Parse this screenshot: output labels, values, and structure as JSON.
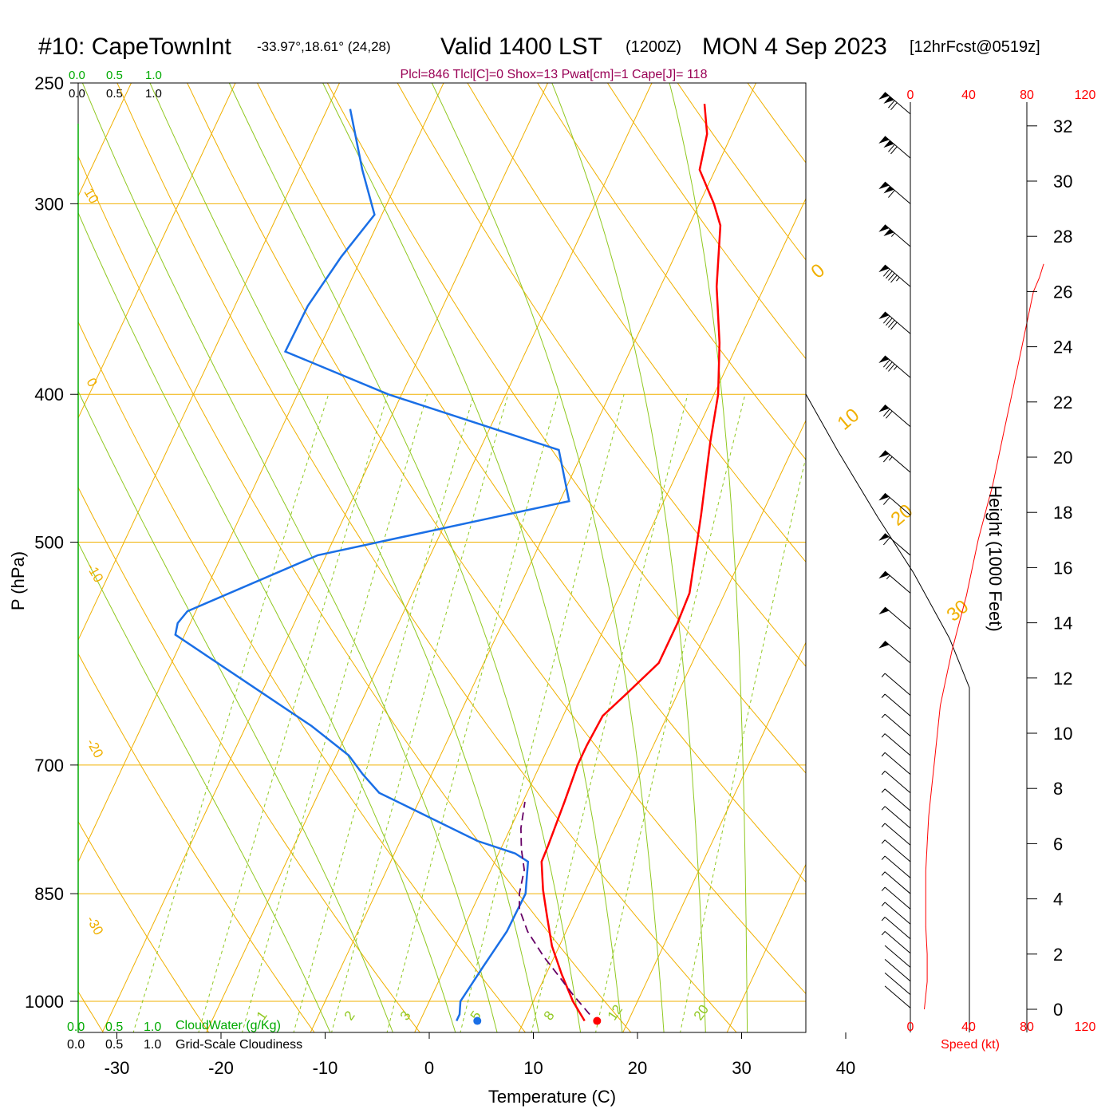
{
  "header": {
    "station": "#10: CapeTownInt",
    "coords": "-33.97°,18.61° (24,28)",
    "valid": "Valid 1400 LST",
    "zulu": "(1200Z)",
    "date": "MON 4 Sep 2023",
    "forecast": "[12hrFcst@0519z]"
  },
  "params_line": "Plcl=846 Tlcl[C]=0 Shox=13 Pwat[cm]=1 Cape[J]= 118",
  "colors": {
    "isotherm": "#f0b000",
    "dry_adiabat": "#f0b000",
    "moist_adiabat": "#90c820",
    "mixing_ratio": "#90c820",
    "temperature": "#ff0000",
    "dewpoint": "#1a6fe6",
    "parcel": "#660066",
    "cloud": "#00aa00",
    "speed": "#ff0000",
    "params": "#990055"
  },
  "cloud_scale_top": {
    "green": [
      "0.0",
      "0.5",
      "1.0"
    ],
    "black": [
      "0.0",
      "0.5",
      "1.0"
    ]
  },
  "cloud_scale_bottom": {
    "green": [
      "0.0",
      "0.5",
      "1.0"
    ],
    "green_label": "CloudWater (g/Kg)",
    "black": [
      "0.0",
      "0.5",
      "1.0"
    ],
    "black_label": "Grid-Scale Cloudiness"
  },
  "speed_scale": {
    "ticks": [
      "0",
      "40",
      "80",
      "120"
    ],
    "label": "Speed (kt)"
  },
  "chart_data": {
    "type": "line",
    "title": "#10: CapeTownInt Valid 1400 LST (1200Z) MON 4 Sep 2023",
    "xlabel": "Temperature (C)",
    "ylabel": "P (hPa)",
    "y2label": "Height (1000 Feet)",
    "x_ticks": [
      "-30",
      "-20",
      "-10",
      "0",
      "10",
      "20",
      "30",
      "40"
    ],
    "y_ticks": [
      "250",
      "300",
      "400",
      "500",
      "700",
      "850",
      "1000"
    ],
    "height_ticks": [
      "0",
      "2",
      "4",
      "6",
      "8",
      "10",
      "12",
      "14",
      "16",
      "18",
      "20",
      "22",
      "24",
      "26",
      "28",
      "30",
      "32"
    ],
    "xlim": [
      -33,
      47
    ],
    "ylim": [
      1050,
      250
    ],
    "log_scale_y": true,
    "skew": true,
    "mixing_ratio_labels": [
      "1",
      "2",
      "3",
      "5",
      "8",
      "12",
      "20"
    ],
    "isotherm_labels": [
      "10",
      "0",
      "-10",
      "-20",
      "-30",
      "0",
      "10",
      "20",
      "30"
    ],
    "series": [
      {
        "role": "temperature",
        "values": [
          [
            15.8,
            1030
          ],
          [
            13.8,
            1000
          ],
          [
            11.5,
            960
          ],
          [
            9.3,
            920
          ],
          [
            7.5,
            880
          ],
          [
            5.9,
            845
          ],
          [
            4.5,
            810
          ],
          [
            4.4,
            790
          ],
          [
            4.0,
            740
          ],
          [
            3.6,
            700
          ],
          [
            3.6,
            680
          ],
          [
            3.8,
            650
          ],
          [
            5.0,
            630
          ],
          [
            6.8,
            600
          ],
          [
            6.8,
            565
          ],
          [
            6.6,
            540
          ],
          [
            4.2,
            480
          ],
          [
            1.8,
            430
          ],
          [
            0.4,
            400
          ],
          [
            -1.8,
            370
          ],
          [
            -4.6,
            340
          ],
          [
            -7.0,
            310
          ],
          [
            -8.6,
            300
          ],
          [
            -11.5,
            285
          ],
          [
            -12.4,
            270
          ],
          [
            -14.0,
            258
          ]
        ]
      },
      {
        "role": "dewpoint",
        "values": [
          [
            3.5,
            1030
          ],
          [
            3.5,
            1020
          ],
          [
            3.0,
            1000
          ],
          [
            3.6,
            950
          ],
          [
            4.3,
            900
          ],
          [
            4.4,
            850
          ],
          [
            3.2,
            810
          ],
          [
            1.6,
            800
          ],
          [
            -2.6,
            785
          ],
          [
            -8.8,
            755
          ],
          [
            -14.2,
            730
          ],
          [
            -16.6,
            710
          ],
          [
            -18.8,
            690
          ],
          [
            -23.7,
            660
          ],
          [
            -31.5,
            620
          ],
          [
            -40.9,
            575
          ],
          [
            -41.2,
            565
          ],
          [
            -40.8,
            555
          ],
          [
            -30.8,
            510
          ],
          [
            -9.1,
            470
          ],
          [
            -12.4,
            435
          ],
          [
            -31.3,
            400
          ],
          [
            -43.1,
            375
          ],
          [
            -43.0,
            350
          ],
          [
            -42.0,
            325
          ],
          [
            -40.7,
            305
          ],
          [
            -43.9,
            285
          ],
          [
            -47.8,
            260
          ]
        ]
      },
      {
        "role": "parcel",
        "values": [
          [
            16.0,
            1020
          ],
          [
            13.5,
            990
          ],
          [
            11.5,
            965
          ],
          [
            9.0,
            935
          ],
          [
            6.3,
            900
          ],
          [
            4.5,
            870
          ],
          [
            3.8,
            850
          ],
          [
            3.2,
            820
          ],
          [
            2.0,
            795
          ],
          [
            1.0,
            770
          ],
          [
            0.2,
            740
          ]
        ]
      }
    ],
    "surface_temperature": 17,
    "surface_dewpoint": 5.5
  },
  "winds": [
    {
      "p": 1010,
      "kt": 4
    },
    {
      "p": 990,
      "kt": 4
    },
    {
      "p": 970,
      "kt": 4
    },
    {
      "p": 950,
      "kt": 4
    },
    {
      "p": 930,
      "kt": 5
    },
    {
      "p": 910,
      "kt": 5
    },
    {
      "p": 890,
      "kt": 5
    },
    {
      "p": 870,
      "kt": 5
    },
    {
      "p": 850,
      "kt": 5
    },
    {
      "p": 830,
      "kt": 5
    },
    {
      "p": 810,
      "kt": 5
    },
    {
      "p": 790,
      "kt": 5
    },
    {
      "p": 770,
      "kt": 5
    },
    {
      "p": 750,
      "kt": 5
    },
    {
      "p": 730,
      "kt": 5
    },
    {
      "p": 710,
      "kt": 5
    },
    {
      "p": 690,
      "kt": 5
    },
    {
      "p": 670,
      "kt": 5
    },
    {
      "p": 650,
      "kt": 5
    },
    {
      "p": 630,
      "kt": 5
    },
    {
      "p": 600,
      "kt": 50
    },
    {
      "p": 570,
      "kt": 50
    },
    {
      "p": 540,
      "kt": 55
    },
    {
      "p": 510,
      "kt": 60
    },
    {
      "p": 480,
      "kt": 60
    },
    {
      "p": 450,
      "kt": 65
    },
    {
      "p": 420,
      "kt": 70
    },
    {
      "p": 390,
      "kt": 85
    },
    {
      "p": 365,
      "kt": 90
    },
    {
      "p": 340,
      "kt": 95
    },
    {
      "p": 320,
      "kt": 105
    },
    {
      "p": 300,
      "kt": 110
    },
    {
      "p": 280,
      "kt": 120
    },
    {
      "p": 262,
      "kt": 120
    }
  ],
  "wind_speed_profile": [
    [
      3,
      0
    ],
    [
      5,
      1
    ],
    [
      5,
      2
    ],
    [
      4,
      3
    ],
    [
      4,
      4
    ],
    [
      4,
      5
    ],
    [
      5,
      6
    ],
    [
      6,
      7
    ],
    [
      8,
      8
    ],
    [
      10,
      9
    ],
    [
      12,
      10
    ],
    [
      14,
      11
    ],
    [
      18,
      12
    ],
    [
      22,
      13
    ],
    [
      27,
      14
    ],
    [
      32,
      15
    ],
    [
      36,
      16
    ],
    [
      40,
      17
    ],
    [
      45,
      18
    ],
    [
      50,
      19
    ],
    [
      54,
      20
    ],
    [
      58,
      21
    ],
    [
      62,
      22
    ],
    [
      66,
      23
    ],
    [
      70,
      24
    ],
    [
      74,
      25
    ],
    [
      78,
      26
    ],
    [
      82,
      26.5
    ],
    [
      85,
      27
    ]
  ]
}
